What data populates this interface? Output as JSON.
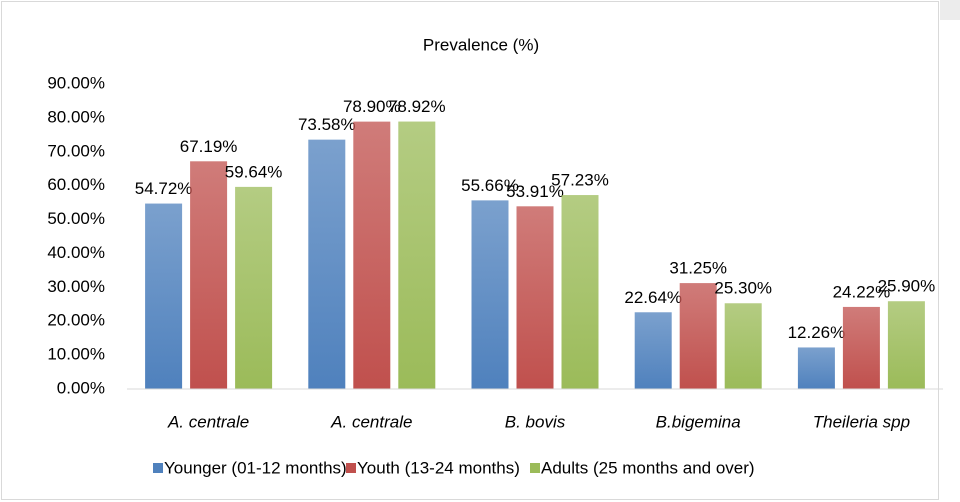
{
  "chart_data": {
    "type": "bar",
    "title": "Prevalence (%)",
    "categories": [
      "A. centrale",
      "A. centrale",
      "B. bovis",
      "B.bigemina",
      "Theileria spp"
    ],
    "series": [
      {
        "name": "Younger (01-12 months)",
        "color": "#4f81bd",
        "values": [
          54.72,
          73.58,
          55.66,
          22.64,
          12.26
        ],
        "value_labels": [
          "54.72%",
          "73.58%",
          "55.66%",
          "22.64%",
          "12.26%"
        ]
      },
      {
        "name": "Youth (13-24 months)",
        "color": "#c0504d",
        "values": [
          67.19,
          78.9,
          53.91,
          31.25,
          24.22
        ],
        "value_labels": [
          "67.19%",
          "78.90%",
          "53.91%",
          "31.25%",
          "24.22%"
        ]
      },
      {
        "name": "Adults (25 months and over)",
        "color": "#9bbb59",
        "values": [
          59.64,
          78.92,
          57.23,
          25.3,
          25.9
        ],
        "value_labels": [
          "59.64%",
          "78.92%",
          "57.23%",
          "25.30%",
          "25.90%"
        ]
      }
    ],
    "ylim": [
      0,
      90
    ],
    "yticks": [
      {
        "value": 0,
        "label": "0.00%"
      },
      {
        "value": 10,
        "label": "10.00%"
      },
      {
        "value": 20,
        "label": "20.00%"
      },
      {
        "value": 30,
        "label": "30.00%"
      },
      {
        "value": 40,
        "label": "40.00%"
      },
      {
        "value": 50,
        "label": "50.00%"
      },
      {
        "value": 60,
        "label": "60.00%"
      },
      {
        "value": 70,
        "label": "70.00%"
      },
      {
        "value": 80,
        "label": "80.00%"
      },
      {
        "value": 90,
        "label": "90.00%"
      }
    ],
    "grid": false,
    "legend": "bottom"
  }
}
